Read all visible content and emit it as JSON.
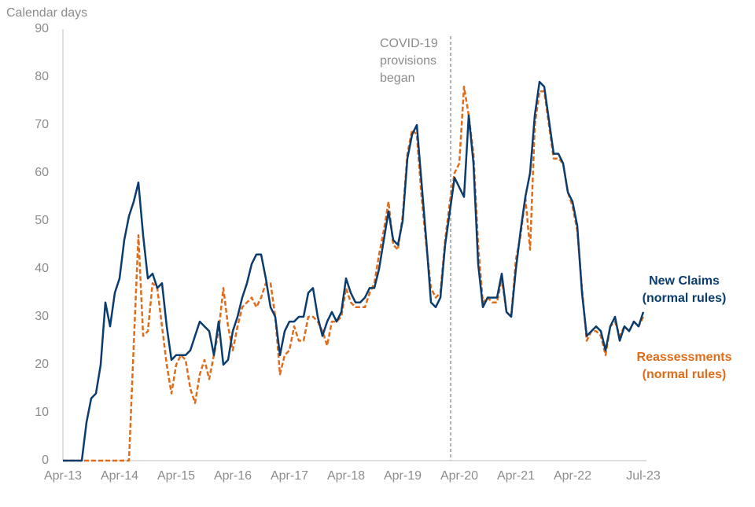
{
  "chart_data": {
    "type": "line",
    "y_axis_title": "Calendar days",
    "annotation": "COVID-19 provisions began",
    "categories": [
      "Apr-13",
      null,
      null,
      null,
      null,
      null,
      null,
      null,
      null,
      null,
      null,
      null,
      "Apr-14",
      null,
      null,
      null,
      null,
      null,
      null,
      null,
      null,
      null,
      null,
      null,
      "Apr-15",
      null,
      null,
      null,
      null,
      null,
      null,
      null,
      null,
      null,
      null,
      null,
      "Apr-16",
      null,
      null,
      null,
      null,
      null,
      null,
      null,
      null,
      null,
      null,
      null,
      "Apr-17",
      null,
      null,
      null,
      null,
      null,
      null,
      null,
      null,
      null,
      null,
      null,
      "Apr-18",
      null,
      null,
      null,
      null,
      null,
      null,
      null,
      null,
      null,
      null,
      null,
      "Apr-19",
      null,
      null,
      null,
      null,
      null,
      null,
      null,
      null,
      null,
      null,
      null,
      "Apr-20",
      null,
      null,
      null,
      null,
      null,
      null,
      null,
      null,
      null,
      null,
      null,
      "Apr-21",
      null,
      null,
      null,
      null,
      null,
      null,
      null,
      null,
      null,
      null,
      null,
      "Apr-22",
      null,
      null,
      null,
      null,
      null,
      null,
      null,
      null,
      null,
      null,
      null,
      null,
      null,
      null,
      "Jul-23"
    ],
    "series": [
      {
        "name": "New Claims (normal rules)",
        "color": "#0b3c6e",
        "style": "solid",
        "values": [
          0,
          0,
          0,
          0,
          0,
          8,
          13,
          14,
          20,
          33,
          28,
          35,
          38,
          46,
          51,
          54,
          58,
          47,
          38,
          39,
          36,
          37,
          28,
          21,
          22,
          22,
          22,
          23,
          26,
          29,
          28,
          27,
          22,
          29,
          20,
          21,
          27,
          30,
          34,
          37,
          41,
          43,
          43,
          38,
          32,
          30,
          22,
          27,
          29,
          29,
          30,
          30,
          35,
          36,
          30,
          26,
          29,
          31,
          29,
          31,
          38,
          35,
          33,
          33,
          34,
          36,
          36,
          40,
          46,
          52,
          46,
          45,
          50,
          63,
          68,
          70,
          58,
          46,
          33,
          32,
          34,
          45,
          52,
          59,
          57,
          55,
          72,
          62,
          41,
          32,
          34,
          34,
          34,
          39,
          31,
          30,
          40,
          48,
          55,
          60,
          72,
          79,
          78,
          71,
          64,
          64,
          62,
          56,
          54,
          49,
          35,
          26,
          27,
          28,
          27,
          23,
          28,
          30,
          25,
          28,
          27,
          29,
          28,
          31
        ]
      },
      {
        "name": "Reassessments (normal rules)",
        "color": "#e06c1a",
        "style": "dashed",
        "values": [
          0,
          0,
          0,
          0,
          0,
          0,
          0,
          0,
          0,
          0,
          0,
          0,
          0,
          0,
          0,
          24,
          47,
          26,
          27,
          37,
          36,
          28,
          20,
          14,
          20,
          22,
          21,
          15,
          12,
          18,
          21,
          17,
          22,
          27,
          36,
          28,
          23,
          28,
          32,
          33,
          34,
          32,
          34,
          37,
          37,
          30,
          18,
          22,
          23,
          28,
          25,
          25,
          30,
          30,
          29,
          27,
          24,
          29,
          29,
          30,
          36,
          33,
          32,
          32,
          32,
          35,
          37,
          43,
          48,
          54,
          45,
          44,
          51,
          64,
          69,
          68,
          55,
          45,
          36,
          34,
          35,
          46,
          54,
          60,
          62,
          78,
          72,
          64,
          45,
          33,
          34,
          33,
          33,
          38,
          31,
          30,
          42,
          47,
          55,
          44,
          70,
          77,
          77,
          70,
          63,
          63,
          62,
          56,
          53,
          48,
          36,
          25,
          27,
          27,
          26,
          22,
          28,
          29,
          26,
          28,
          27,
          29,
          28,
          30
        ]
      }
    ],
    "ylim": [
      0,
      90
    ],
    "yticks": [
      0,
      10,
      20,
      30,
      40,
      50,
      60,
      70,
      80,
      90
    ],
    "grid": false
  }
}
